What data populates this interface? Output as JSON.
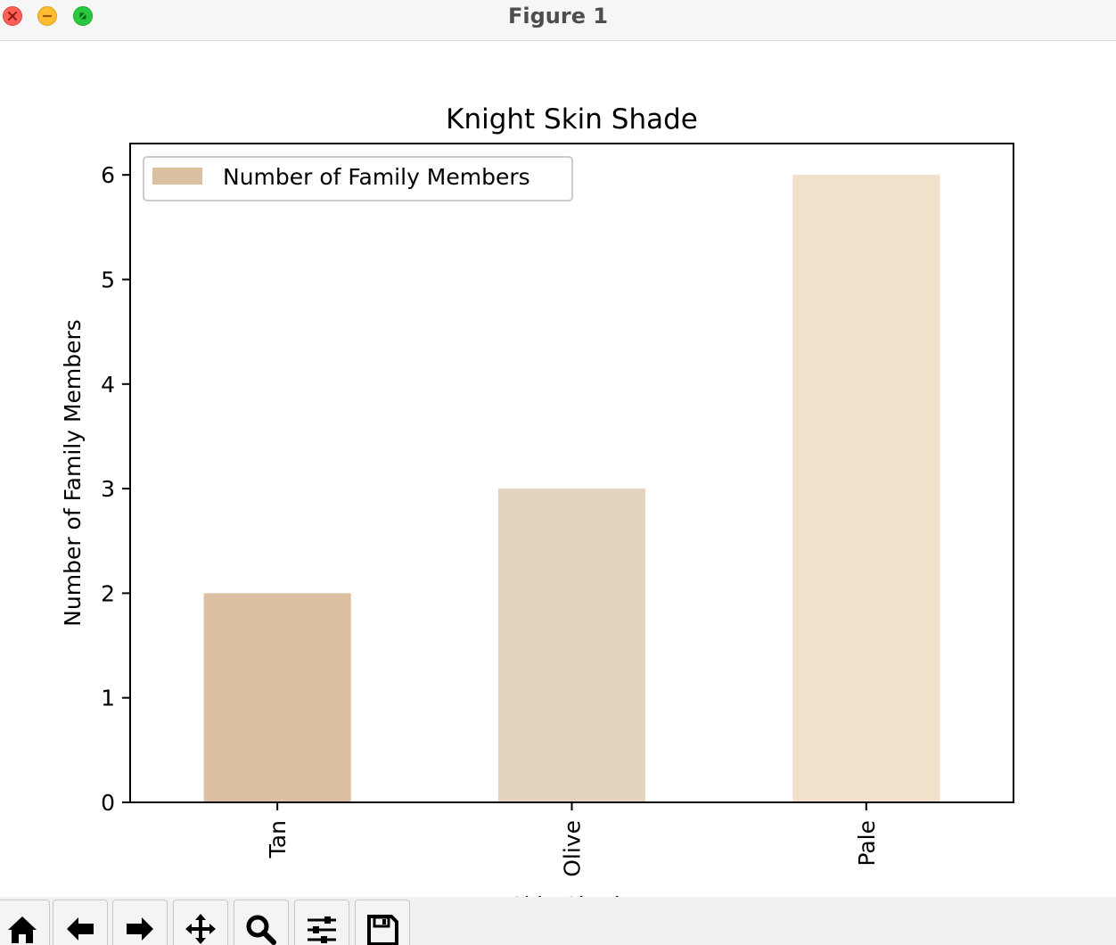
{
  "window": {
    "title": "Figure 1"
  },
  "toolbar": {
    "buttons": [
      {
        "icon": "home-icon",
        "name": "home-button"
      },
      {
        "icon": "back-arrow-icon",
        "name": "back-button"
      },
      {
        "icon": "forward-arrow-icon",
        "name": "forward-button"
      },
      {
        "icon": "pan-icon",
        "name": "pan-button"
      },
      {
        "icon": "zoom-icon",
        "name": "zoom-button"
      },
      {
        "icon": "configure-subplots-icon",
        "name": "configure-subplots-button"
      },
      {
        "icon": "save-icon",
        "name": "save-button"
      }
    ]
  },
  "chart_data": {
    "type": "bar",
    "title": "Knight Skin Shade",
    "xlabel": "Skin Shade",
    "ylabel": "Number of Family Members",
    "categories": [
      "Tan",
      "Olive",
      "Pale"
    ],
    "series": [
      {
        "name": "Number of Family Members",
        "values": [
          2,
          3,
          6
        ]
      }
    ],
    "bar_colors": [
      "#dbc1a2",
      "#e3d3bf",
      "#f2e1ca"
    ],
    "legend_color": "#dbc1a2",
    "ylim": [
      0,
      6.3
    ],
    "yticks": [
      0,
      1,
      2,
      3,
      4,
      5,
      6
    ],
    "grid": false,
    "legend_position": "upper left",
    "x_tick_rotation": "vertical"
  }
}
